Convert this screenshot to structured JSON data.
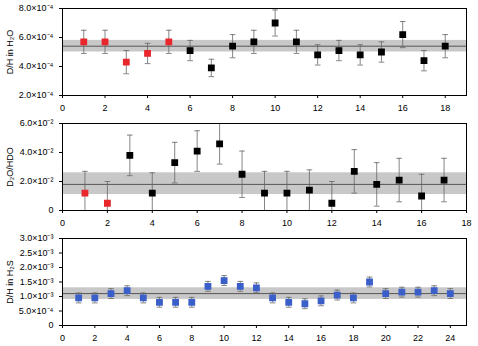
{
  "chart_data": [
    {
      "type": "scatter",
      "y_label": "D/H in H₂O",
      "marker": "square",
      "xlim": [
        0,
        19
      ],
      "xticks": [
        0,
        2,
        4,
        6,
        8,
        10,
        12,
        14,
        16,
        18
      ],
      "ylim": [
        0.0002,
        0.0008
      ],
      "yticks": [
        {
          "value": 0.0002,
          "label": "2.0×10⁻⁴"
        },
        {
          "value": 0.0004,
          "label": "4.0×10⁻⁴"
        },
        {
          "value": 0.0006,
          "label": "6.0×10⁻⁴"
        },
        {
          "value": 0.0008,
          "label": "8.0×10⁻⁴"
        }
      ],
      "band": [
        0.0005,
        0.00058
      ],
      "band_center": 0.00054,
      "series": [
        {
          "color": "#e8262b",
          "x": [
            1,
            2,
            3,
            4,
            5
          ],
          "values": [
            0.00057,
            0.00057,
            0.00043,
            0.00049,
            0.00057
          ],
          "errors": [
            8e-05,
            8e-05,
            8e-05,
            7e-05,
            8e-05
          ]
        },
        {
          "color": "#000000",
          "x": [
            6,
            7,
            8,
            9,
            10,
            11,
            12,
            13,
            14,
            15,
            16,
            17,
            18
          ],
          "values": [
            0.00051,
            0.00039,
            0.00054,
            0.00057,
            0.0007,
            0.00057,
            0.00048,
            0.00051,
            0.00048,
            0.0005,
            0.00062,
            0.00044,
            0.00054
          ],
          "errors": [
            7e-05,
            6e-05,
            8e-05,
            8e-05,
            9e-05,
            8e-05,
            7e-05,
            7e-05,
            7e-05,
            7e-05,
            9e-05,
            7e-05,
            8e-05
          ]
        }
      ]
    },
    {
      "type": "scatter",
      "y_label": "D₂O/HDO",
      "marker": "square",
      "xlim": [
        0,
        18
      ],
      "xticks": [
        0,
        2,
        4,
        6,
        8,
        10,
        12,
        14,
        16,
        18
      ],
      "ylim": [
        0,
        0.06
      ],
      "yticks": [
        0,
        {
          "value": 0.02,
          "label": "2.0×10⁻²"
        },
        {
          "value": 0.04,
          "label": "4.0×10⁻²"
        },
        {
          "value": 0.06,
          "label": "6.0×10⁻²"
        }
      ],
      "band": [
        0.011,
        0.026
      ],
      "band_center": 0.018,
      "series": [
        {
          "color": "#e8262b",
          "x": [
            1,
            2
          ],
          "values": [
            0.012,
            0.005
          ],
          "errors": [
            0.015,
            0.015
          ]
        },
        {
          "color": "#000000",
          "x": [
            3,
            4,
            5,
            6,
            7,
            8,
            9,
            10,
            11,
            12,
            13,
            14,
            15,
            16,
            17
          ],
          "values": [
            0.038,
            0.012,
            0.033,
            0.041,
            0.046,
            0.025,
            0.012,
            0.012,
            0.014,
            0.005,
            0.027,
            0.018,
            0.021,
            0.01,
            0.021
          ],
          "errors": [
            0.014,
            0.014,
            0.014,
            0.014,
            0.014,
            0.016,
            0.015,
            0.015,
            0.014,
            0.015,
            0.015,
            0.015,
            0.015,
            0.015,
            0.015
          ]
        }
      ]
    },
    {
      "type": "scatter",
      "y_label": "D/H in H₂S",
      "marker": "square",
      "xlim": [
        0,
        25
      ],
      "xticks": [
        0,
        2,
        4,
        6,
        8,
        10,
        12,
        14,
        16,
        18,
        20,
        22,
        24
      ],
      "ylim": [
        0,
        0.003
      ],
      "yticks": [
        0,
        {
          "value": 0.0005,
          "label": "5.0×10⁻⁴"
        },
        {
          "value": 0.001,
          "label": "1.0×10⁻³"
        },
        {
          "value": 0.0015,
          "label": "1.5×10⁻³"
        },
        {
          "value": 0.002,
          "label": "2.0×10⁻³"
        },
        {
          "value": 0.0025,
          "label": "2.5×10⁻³"
        },
        {
          "value": 0.003,
          "label": "3.0×10⁻³"
        }
      ],
      "band": [
        0.0009,
        0.0013
      ],
      "band_center": 0.0011,
      "series": [
        {
          "color": "#3b5fc9",
          "x": [
            1,
            2,
            3,
            4,
            5,
            6,
            7,
            8,
            9,
            10,
            11,
            12,
            13,
            14,
            15,
            16,
            17,
            18,
            19,
            20,
            21,
            22,
            23,
            24
          ],
          "values": [
            0.00095,
            0.00095,
            0.0011,
            0.0012,
            0.00095,
            0.0008,
            0.0008,
            0.0008,
            0.00135,
            0.00155,
            0.00135,
            0.0013,
            0.00095,
            0.0008,
            0.00075,
            0.00085,
            0.00105,
            0.00095,
            0.0015,
            0.0011,
            0.00115,
            0.00115,
            0.0012,
            0.0011
          ],
          "errors": [
            0.00017,
            0.00017,
            0.00017,
            0.00017,
            0.00017,
            0.00017,
            0.00017,
            0.00017,
            0.00017,
            0.00017,
            0.00017,
            0.00017,
            0.00017,
            0.00017,
            0.00017,
            0.00017,
            0.00017,
            0.00017,
            0.00017,
            0.00017,
            0.00017,
            0.00017,
            0.00017,
            0.00017
          ]
        }
      ]
    }
  ]
}
